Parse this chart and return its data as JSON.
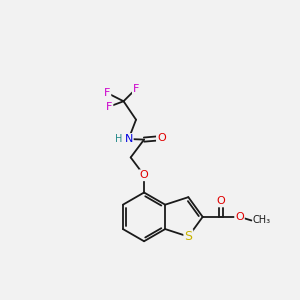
{
  "background_color": "#f2f2f2",
  "bond_color": "#1a1a1a",
  "S_color": "#c8b400",
  "N_color": "#0000e0",
  "O_color": "#e00000",
  "F_color": "#cc00cc",
  "H_color": "#228888",
  "font_size": 8,
  "bond_width": 1.3,
  "figsize": [
    3.0,
    3.0
  ],
  "dpi": 100,
  "xlim": [
    0,
    10
  ],
  "ylim": [
    0,
    10
  ]
}
